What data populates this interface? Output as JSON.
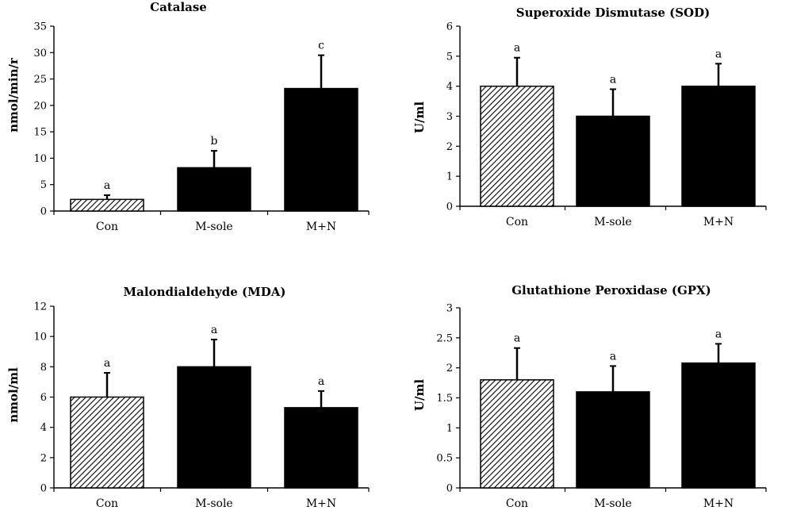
{
  "chart_data": [
    {
      "type": "bar",
      "title": "Catalase",
      "ylabel": "nmol/min/r",
      "xlabel": "",
      "categories": [
        "Con",
        "M-sole",
        "M+N"
      ],
      "values": [
        2.2,
        8.2,
        23.2
      ],
      "errors": [
        0.8,
        3.2,
        6.3
      ],
      "significance": [
        "a",
        "b",
        "c"
      ],
      "ylim": [
        0,
        35
      ],
      "yticks": [
        "0",
        "5",
        "10",
        "15",
        "20",
        "25",
        "30",
        "35"
      ],
      "bar_styles": [
        "hatched",
        "solid",
        "solid"
      ]
    },
    {
      "type": "bar",
      "title": "Superoxide Dismutase (SOD)",
      "ylabel": "U/ml",
      "xlabel": "",
      "categories": [
        "Con",
        "M-sole",
        "M+N"
      ],
      "values": [
        4.0,
        3.0,
        4.0
      ],
      "errors": [
        0.95,
        0.9,
        0.75
      ],
      "significance": [
        "a",
        "a",
        "a"
      ],
      "ylim": [
        0,
        6
      ],
      "yticks": [
        "0",
        "1",
        "2",
        "3",
        "4",
        "5",
        "6"
      ],
      "bar_styles": [
        "hatched",
        "solid",
        "solid"
      ]
    },
    {
      "type": "bar",
      "title": "Malondialdehyde (MDA)",
      "ylabel": "nmol/ml",
      "xlabel": "",
      "categories": [
        "Con",
        "M-sole",
        "M+N"
      ],
      "values": [
        6.0,
        8.0,
        5.3
      ],
      "errors": [
        1.6,
        1.8,
        1.1
      ],
      "significance": [
        "a",
        "a",
        "a"
      ],
      "ylim": [
        0,
        12
      ],
      "yticks": [
        "0",
        "2",
        "4",
        "6",
        "8",
        "10",
        "12"
      ],
      "bar_styles": [
        "hatched",
        "solid",
        "solid"
      ]
    },
    {
      "type": "bar",
      "title": "Glutathione Peroxidase (GPX)",
      "ylabel": "U/ml",
      "xlabel": "",
      "categories": [
        "Con",
        "M-sole",
        "M+N"
      ],
      "values": [
        1.8,
        1.6,
        2.08
      ],
      "errors": [
        0.53,
        0.43,
        0.32
      ],
      "significance": [
        "a",
        "a",
        "a"
      ],
      "ylim": [
        0,
        3
      ],
      "yticks": [
        "0",
        "0.5",
        "1",
        "1.5",
        "2",
        "2.5",
        "3"
      ],
      "bar_styles": [
        "hatched",
        "solid",
        "solid"
      ]
    }
  ],
  "colors": {
    "bar_fill": "#000000",
    "hatch_line": "#000000",
    "background": "#ffffff"
  }
}
